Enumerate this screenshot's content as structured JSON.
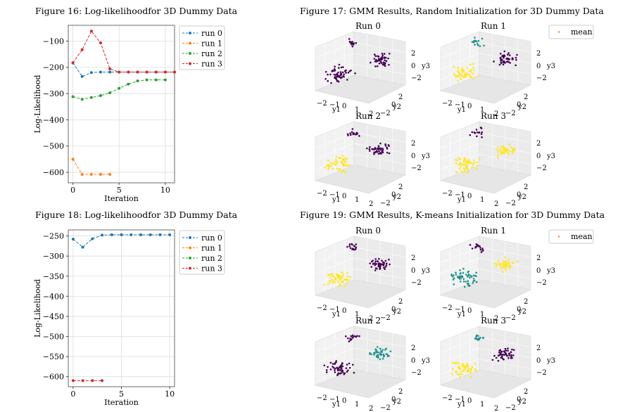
{
  "figures": {
    "fig16": {
      "title": "Figure 16: Log-likelihoodfor 3D Dummy Data",
      "chart_data": {
        "type": "line",
        "title": "",
        "xlabel": "Iteration",
        "ylabel": "Log-Likelihood",
        "xlim": [
          -0.5,
          11.0
        ],
        "ylim": [
          -640,
          -40
        ],
        "xticks": [
          0,
          5,
          10
        ],
        "yticks": [
          -100,
          -200,
          -300,
          -400,
          -500,
          -600
        ],
        "xtick_labels": [
          "0",
          "5",
          "10"
        ],
        "ytick_labels": [
          "−100",
          "−200",
          "−300",
          "−400",
          "−500",
          "−600"
        ],
        "grid": true,
        "legend_position": "outside-right",
        "series": [
          {
            "name": "run 0",
            "color": "#1f77b4",
            "x": [
              0,
              1,
              2,
              3,
              4,
              5,
              6,
              7,
              8,
              9,
              10,
              11
            ],
            "y": [
              -183,
              -235,
              -220,
              -218,
              -218,
              -218,
              -218,
              -218,
              -218,
              -218,
              -218,
              -218
            ]
          },
          {
            "name": "run 1",
            "color": "#ff7f0e",
            "x": [
              0,
              1,
              2,
              3,
              4
            ],
            "y": [
              -550,
              -608,
              -608,
              -608,
              -608
            ]
          },
          {
            "name": "run 2",
            "color": "#2ca02c",
            "x": [
              0,
              1,
              2,
              3,
              4,
              5,
              6,
              7,
              8,
              9,
              10
            ],
            "y": [
              -312,
              -322,
              -315,
              -308,
              -297,
              -280,
              -264,
              -252,
              -248,
              -248,
              -248
            ]
          },
          {
            "name": "run 3",
            "color": "#d62728",
            "x": [
              0,
              1,
              2,
              3,
              4,
              5,
              6,
              7,
              8,
              9,
              10,
              11
            ],
            "y": [
              -183,
              -133,
              -62,
              -107,
              -206,
              -218,
              -218,
              -218,
              -218,
              -218,
              -218,
              -218
            ]
          }
        ]
      }
    },
    "fig18": {
      "title": "Figure 18: Log-likelihoodfor 3D Dummy Data",
      "chart_data": {
        "type": "line",
        "title": "",
        "xlabel": "Iteration",
        "ylabel": "Log-Likelihood",
        "xlim": [
          -0.5,
          10.5
        ],
        "ylim": [
          -625,
          -235
        ],
        "xticks": [
          0,
          5,
          10
        ],
        "yticks": [
          -250,
          -300,
          -350,
          -400,
          -450,
          -500,
          -550,
          -600
        ],
        "xtick_labels": [
          "0",
          "5",
          "10"
        ],
        "ytick_labels": [
          "−250",
          "−300",
          "−350",
          "−400",
          "−450",
          "−500",
          "−550",
          "−600"
        ],
        "grid": true,
        "legend_position": "outside-right",
        "series": [
          {
            "name": "run 0",
            "color": "#1f77b4",
            "x": [
              0,
              1,
              2,
              3,
              4,
              5,
              6,
              7,
              8,
              9,
              10
            ],
            "y": [
              -258,
              -278,
              -257,
              -248,
              -247,
              -247,
              -247,
              -247,
              -247,
              -247,
              -247
            ]
          },
          {
            "name": "run 1",
            "color": "#ff7f0e",
            "x": [],
            "y": []
          },
          {
            "name": "run 2",
            "color": "#2ca02c",
            "x": [],
            "y": []
          },
          {
            "name": "run 3",
            "color": "#d62728",
            "x": [
              0,
              1,
              2,
              3
            ],
            "y": [
              -610,
              -610,
              -610,
              -610
            ]
          }
        ]
      }
    },
    "fig17": {
      "title": "Figure 17: GMM Results, Random Initialization for 3D Dummy Data",
      "legend": "mean",
      "subplots": [
        {
          "title": "Run 0",
          "clusters": [
            "purple",
            "purple",
            "purple"
          ],
          "ticks": {
            "z": [
              "2",
              "0",
              "−2"
            ],
            "zlabel": "y3",
            "x": [
              "−2",
              "−1",
              "0",
              "1",
              "2"
            ],
            "xlabel": "y1",
            "y": [
              "2",
              "0",
              "−2"
            ],
            "ylabel": "y2"
          }
        },
        {
          "title": "Run 1",
          "clusters": [
            "teal",
            "purple",
            "yellow"
          ],
          "ticks": {
            "z": [
              "2",
              "0",
              "−2"
            ],
            "zlabel": "y3",
            "x": [
              "−2",
              "−1",
              "0",
              "1",
              "2"
            ],
            "xlabel": "y1",
            "y": [
              "2",
              "0",
              "−2"
            ],
            "ylabel": "y2"
          }
        },
        {
          "title": "Run 2",
          "clusters": [
            "purple",
            "purple",
            "yellow"
          ],
          "ticks": {
            "z": [
              "2",
              "0",
              "−2"
            ],
            "zlabel": "y3",
            "x": [
              "−2",
              "−1",
              "0",
              "1",
              "2"
            ],
            "xlabel": "y1",
            "y": [
              "2",
              "0",
              "−2"
            ],
            "ylabel": "y2"
          }
        },
        {
          "title": "Run 3",
          "clusters": [
            "purple",
            "yellow",
            "yellow"
          ],
          "ticks": {
            "z": [
              "2",
              "0",
              "−2"
            ],
            "zlabel": "y3",
            "x": [
              "−2",
              "−1",
              "0",
              "1",
              "2"
            ],
            "xlabel": "y1",
            "y": [
              "2",
              "0",
              "−2"
            ],
            "ylabel": "y2"
          }
        }
      ]
    },
    "fig19": {
      "title": "Figure 19: GMM Results, K-means Initialization for 3D Dummy Data",
      "legend": "mean",
      "subplots": [
        {
          "title": "Run 0",
          "clusters": [
            "purple",
            "purple",
            "yellow"
          ],
          "ticks": {
            "z": [
              "2",
              "0",
              "−2"
            ],
            "zlabel": "y3",
            "x": [
              "−2",
              "−1",
              "0",
              "1",
              "2"
            ],
            "xlabel": "y1",
            "y": [
              "2",
              "0",
              "−2"
            ],
            "ylabel": "y2"
          }
        },
        {
          "title": "Run 1",
          "clusters": [
            "purple",
            "yellow",
            "teal"
          ],
          "ticks": {
            "z": [
              "2",
              "0",
              "−2"
            ],
            "zlabel": "y3",
            "x": [
              "−2",
              "−1",
              "0",
              "1",
              "2"
            ],
            "xlabel": "y1",
            "y": [
              "2",
              "0",
              "−2"
            ],
            "ylabel": "y2"
          }
        },
        {
          "title": "Run 2",
          "clusters": [
            "purple",
            "teal",
            "purple"
          ],
          "ticks": {
            "z": [
              "2",
              "0",
              "−2"
            ],
            "zlabel": "y3",
            "x": [
              "−2",
              "−1",
              "0",
              "1",
              "2"
            ],
            "xlabel": "y1",
            "y": [
              "2",
              "0",
              "−2"
            ],
            "ylabel": "y2"
          }
        },
        {
          "title": "Run 3",
          "clusters": [
            "teal",
            "purple",
            "yellow"
          ],
          "ticks": {
            "z": [
              "2",
              "0",
              "−2"
            ],
            "zlabel": "y3",
            "x": [
              "−2",
              "−1",
              "0",
              "1",
              "2"
            ],
            "xlabel": "y1",
            "y": [
              "2",
              "0",
              "−2"
            ],
            "ylabel": "y2"
          }
        }
      ]
    }
  },
  "cluster_colors": {
    "purple": "#440154",
    "teal": "#21918c",
    "yellow": "#fde725"
  }
}
